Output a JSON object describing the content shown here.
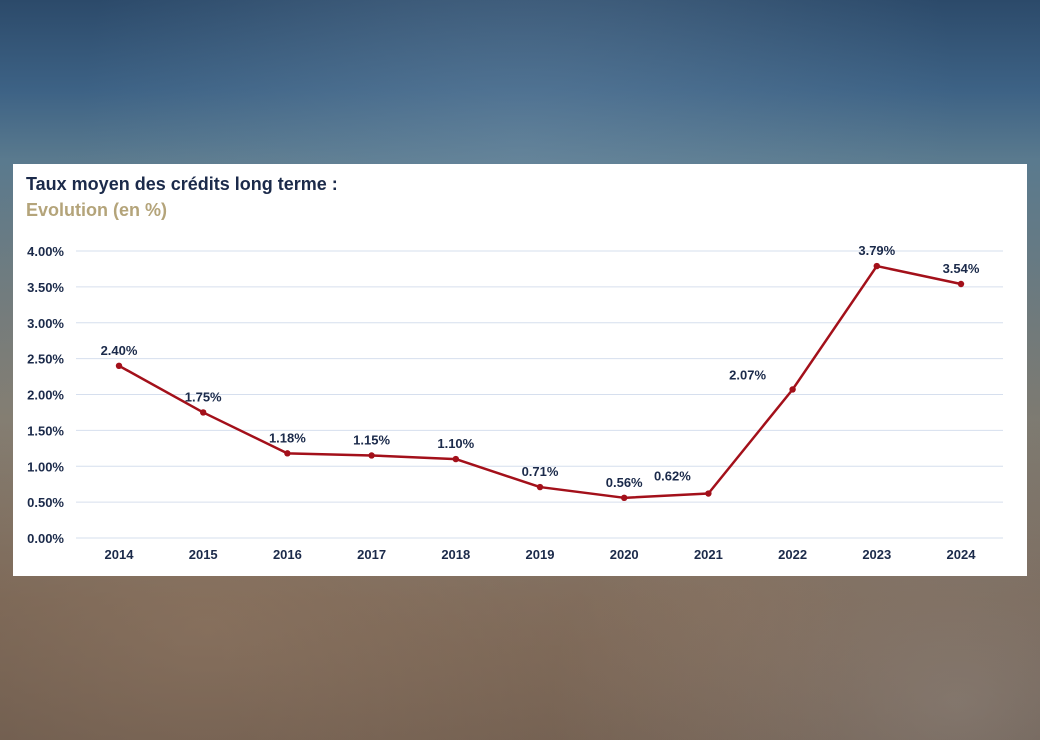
{
  "title": "Taux moyen des crédits long terme :",
  "subtitle": "Evolution (en %)",
  "colors": {
    "line": "#a3101a",
    "title": "#1b2a4a",
    "subtitle": "#b4a47a",
    "grid": "#d6dfee",
    "labels": "#1b2a4a"
  },
  "chart_data": {
    "type": "line",
    "categories": [
      "2014",
      "2015",
      "2016",
      "2017",
      "2018",
      "2019",
      "2020",
      "2021",
      "2022",
      "2023",
      "2024"
    ],
    "series": [
      {
        "values": [
          2.4,
          1.75,
          1.18,
          1.15,
          1.1,
          0.71,
          0.56,
          0.62,
          2.07,
          3.79,
          3.54
        ],
        "data_labels": [
          "2.40%",
          "1.75%",
          "1.18%",
          "1.15%",
          "1.10%",
          "0.71%",
          "0.56%",
          "0.62%",
          "2.07%",
          "3.79%",
          "3.54%"
        ]
      }
    ],
    "y_ticks": [
      "0.00%",
      "0.50%",
      "1.00%",
      "1.50%",
      "2.00%",
      "2.50%",
      "3.00%",
      "3.50%",
      "4.00%"
    ],
    "ylim": [
      0,
      4
    ],
    "grid": true,
    "legend": "none",
    "xlabel": "",
    "ylabel": ""
  }
}
